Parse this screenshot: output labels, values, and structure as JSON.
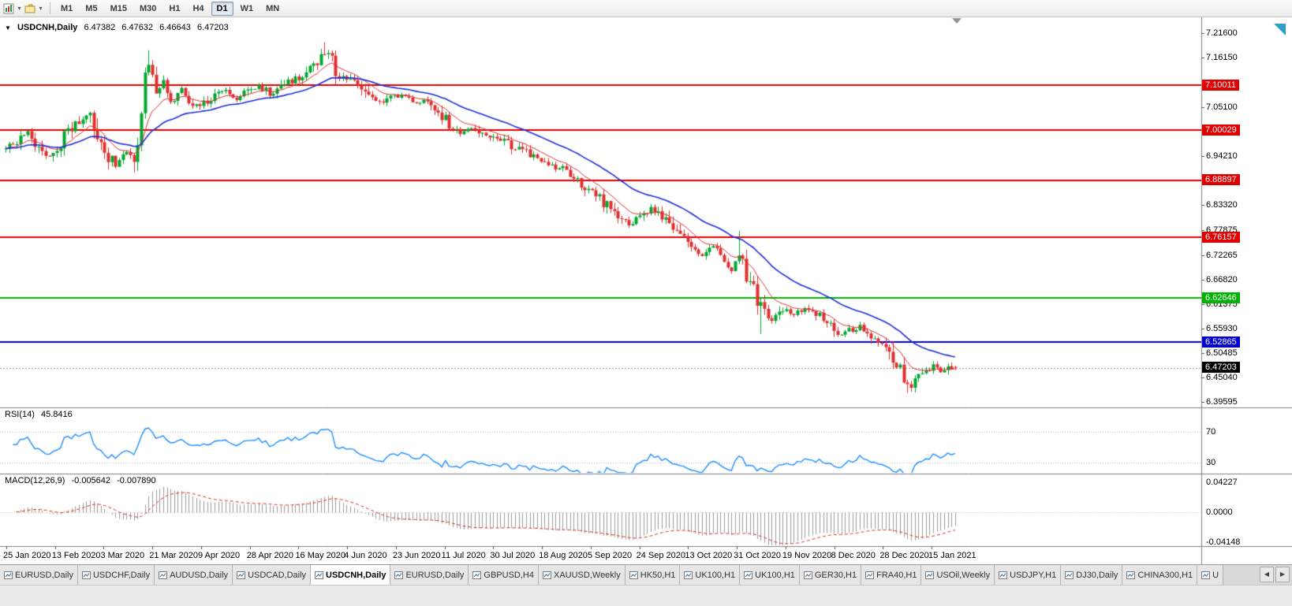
{
  "toolbar": {
    "timeframes": [
      {
        "label": "M1",
        "active": false
      },
      {
        "label": "M5",
        "active": false
      },
      {
        "label": "M15",
        "active": false
      },
      {
        "label": "M30",
        "active": false
      },
      {
        "label": "H1",
        "active": false
      },
      {
        "label": "H4",
        "active": false
      },
      {
        "label": "D1",
        "active": true
      },
      {
        "label": "W1",
        "active": false
      },
      {
        "label": "MN",
        "active": false
      }
    ]
  },
  "chart": {
    "header": {
      "title": "USDCNH,Daily",
      "open": "6.47382",
      "high": "6.47632",
      "low": "6.46643",
      "close": "6.47203"
    },
    "y_axis_labels": [
      "7.21600",
      "7.16150",
      "7.05100",
      "6.94210",
      "6.83320",
      "6.77875",
      "6.72265",
      "6.66820",
      "6.61375",
      "6.55930",
      "6.50485",
      "6.45040",
      "6.39595"
    ],
    "level_lines": [
      {
        "label": "7.10011",
        "price": 7.10011,
        "color": "#e00000"
      },
      {
        "label": "7.00029",
        "price": 7.00029,
        "color": "#e00000"
      },
      {
        "label": "6.88897",
        "price": 6.88897,
        "color": "#e00000"
      },
      {
        "label": "6.76157",
        "price": 6.76157,
        "color": "#e00000"
      },
      {
        "label": "6.62646",
        "price": 6.62646,
        "color": "#00b300"
      },
      {
        "label": "6.52865",
        "price": 6.52865,
        "color": "#0000d8"
      }
    ],
    "current_price": {
      "label": "6.47203",
      "price": 6.47203,
      "bg": "#000000"
    },
    "x_axis_labels": [
      "25 Jan 2020",
      "13 Feb 2020",
      "3 Mar 2020",
      "21 Mar 2020",
      "9 Apr 2020",
      "28 Apr 2020",
      "16 May 2020",
      "4 Jun 2020",
      "23 Jun 2020",
      "11 Jul 2020",
      "30 Jul 2020",
      "18 Aug 2020",
      "5 Sep 2020",
      "24 Sep 2020",
      "13 Oct 2020",
      "31 Oct 2020",
      "19 Nov 2020",
      "8 Dec 2020",
      "28 Dec 2020",
      "15 Jan 2021"
    ]
  },
  "rsi": {
    "name": "RSI(14)",
    "value": "45.8416",
    "color": "#1e90ff",
    "levels": [
      {
        "label": "70",
        "value": 70
      },
      {
        "label": "30",
        "value": 30
      }
    ]
  },
  "macd": {
    "name": "MACD(12,26,9)",
    "value_main": "-0.005642",
    "value_signal": "-0.007890",
    "axis_labels": [
      {
        "label": "0.04227",
        "value": 0.04227
      },
      {
        "label": "0.0000",
        "value": 0
      },
      {
        "label": "-0.04148",
        "value": -0.04148
      }
    ]
  },
  "tabs": {
    "items": [
      {
        "label": "EURUSD,Daily",
        "active": false
      },
      {
        "label": "USDCHF,Daily",
        "active": false
      },
      {
        "label": "AUDUSD,Daily",
        "active": false
      },
      {
        "label": "USDCAD,Daily",
        "active": false
      },
      {
        "label": "USDCNH,Daily",
        "active": true
      },
      {
        "label": "EURUSD,Daily",
        "active": false
      },
      {
        "label": "GBPUSD,H4",
        "active": false
      },
      {
        "label": "XAUUSD,Weekly",
        "active": false
      },
      {
        "label": "HK50,H1",
        "active": false
      },
      {
        "label": "UK100,H1",
        "active": false
      },
      {
        "label": "UK100,H1",
        "active": false
      },
      {
        "label": "GER30,H1",
        "active": false
      },
      {
        "label": "FRA40,H1",
        "active": false
      },
      {
        "label": "USOil,Weekly",
        "active": false
      },
      {
        "label": "USDJPY,H1",
        "active": false
      },
      {
        "label": "DJ30,Daily",
        "active": false
      },
      {
        "label": "CHINA300,H1",
        "active": false
      },
      {
        "label": "U",
        "active": false
      }
    ]
  },
  "chart_data": {
    "type": "candlestick",
    "symbol": "USDCNH",
    "timeframe": "Daily",
    "candle_count": 260,
    "visible_range": {
      "start": "25 Jan 2020",
      "end": "Jan 2021",
      "price_min": 6.39595,
      "price_max": 7.216
    },
    "ohlc_current": {
      "open": 6.47382,
      "high": 6.47632,
      "low": 6.46643,
      "close": 6.47203
    },
    "horizontal_levels": [
      7.10011,
      7.00029,
      6.88897,
      6.76157,
      6.62646,
      6.52865
    ],
    "bid_line": 6.47203,
    "indicators": [
      {
        "type": "ma",
        "period": 10,
        "color": "#e03232"
      },
      {
        "type": "ma",
        "period": 30,
        "color": "#1c2fd6"
      },
      {
        "type": "rsi",
        "period": 14,
        "current": 45.8416,
        "levels": [
          70,
          30
        ]
      },
      {
        "type": "macd",
        "fast": 12,
        "slow": 26,
        "signal": 9,
        "current_main": -0.005642,
        "current_signal": -0.00789
      }
    ],
    "close_anchors": [
      [
        0,
        6.955
      ],
      [
        3,
        6.975
      ],
      [
        6,
        6.992
      ],
      [
        9,
        6.966
      ],
      [
        12,
        6.94
      ],
      [
        14,
        6.958
      ],
      [
        16,
        6.985
      ],
      [
        18,
        7.0
      ],
      [
        20,
        7.022
      ],
      [
        22,
        7.04
      ],
      [
        24,
        7.012
      ],
      [
        26,
        6.975
      ],
      [
        28,
        6.945
      ],
      [
        30,
        6.925
      ],
      [
        32,
        6.952
      ],
      [
        34,
        6.94
      ],
      [
        35,
        6.932
      ],
      [
        36,
        6.97
      ],
      [
        38,
        7.12
      ],
      [
        39,
        7.155
      ],
      [
        41,
        7.095
      ],
      [
        43,
        7.108
      ],
      [
        45,
        7.06
      ],
      [
        48,
        7.09
      ],
      [
        51,
        7.05
      ],
      [
        54,
        7.062
      ],
      [
        57,
        7.075
      ],
      [
        60,
        7.09
      ],
      [
        63,
        7.072
      ],
      [
        66,
        7.086
      ],
      [
        69,
        7.1
      ],
      [
        72,
        7.082
      ],
      [
        75,
        7.096
      ],
      [
        78,
        7.11
      ],
      [
        81,
        7.12
      ],
      [
        84,
        7.142
      ],
      [
        86,
        7.165
      ],
      [
        88,
        7.176
      ],
      [
        90,
        7.132
      ],
      [
        93,
        7.116
      ],
      [
        96,
        7.102
      ],
      [
        99,
        7.076
      ],
      [
        102,
        7.062
      ],
      [
        105,
        7.072
      ],
      [
        108,
        7.076
      ],
      [
        111,
        7.062
      ],
      [
        114,
        7.066
      ],
      [
        117,
        7.052
      ],
      [
        119,
        7.036
      ],
      [
        121,
        7.006
      ],
      [
        124,
        6.996
      ],
      [
        127,
        7.002
      ],
      [
        130,
        6.992
      ],
      [
        134,
        6.986
      ],
      [
        137,
        6.972
      ],
      [
        140,
        6.956
      ],
      [
        143,
        6.946
      ],
      [
        146,
        6.932
      ],
      [
        149,
        6.922
      ],
      [
        152,
        6.912
      ],
      [
        155,
        6.896
      ],
      [
        158,
        6.876
      ],
      [
        161,
        6.856
      ],
      [
        164,
        6.832
      ],
      [
        167,
        6.812
      ],
      [
        170,
        6.792
      ],
      [
        173,
        6.802
      ],
      [
        176,
        6.826
      ],
      [
        178,
        6.816
      ],
      [
        181,
        6.792
      ],
      [
        184,
        6.766
      ],
      [
        187,
        6.746
      ],
      [
        190,
        6.722
      ],
      [
        193,
        6.742
      ],
      [
        196,
        6.712
      ],
      [
        198,
        6.688
      ],
      [
        200,
        6.722
      ],
      [
        201,
        6.702
      ],
      [
        203,
        6.662
      ],
      [
        205,
        6.618
      ],
      [
        207,
        6.592
      ],
      [
        209,
        6.578
      ],
      [
        212,
        6.602
      ],
      [
        215,
        6.592
      ],
      [
        218,
        6.606
      ],
      [
        221,
        6.592
      ],
      [
        224,
        6.578
      ],
      [
        227,
        6.548
      ],
      [
        230,
        6.556
      ],
      [
        233,
        6.562
      ],
      [
        236,
        6.542
      ],
      [
        239,
        6.532
      ],
      [
        241,
        6.518
      ],
      [
        243,
        6.482
      ],
      [
        245,
        6.442
      ],
      [
        247,
        6.428
      ],
      [
        249,
        6.456
      ],
      [
        251,
        6.462
      ],
      [
        253,
        6.476
      ],
      [
        255,
        6.458
      ],
      [
        257,
        6.47
      ],
      [
        259,
        6.472
      ]
    ],
    "wick_overrides": [
      {
        "i": 35,
        "low": 6.906
      },
      {
        "i": 39,
        "high": 7.178
      },
      {
        "i": 87,
        "high": 7.196
      },
      {
        "i": 200,
        "high": 6.776
      },
      {
        "i": 206,
        "low": 6.547
      },
      {
        "i": 246,
        "low": 6.416
      }
    ]
  }
}
